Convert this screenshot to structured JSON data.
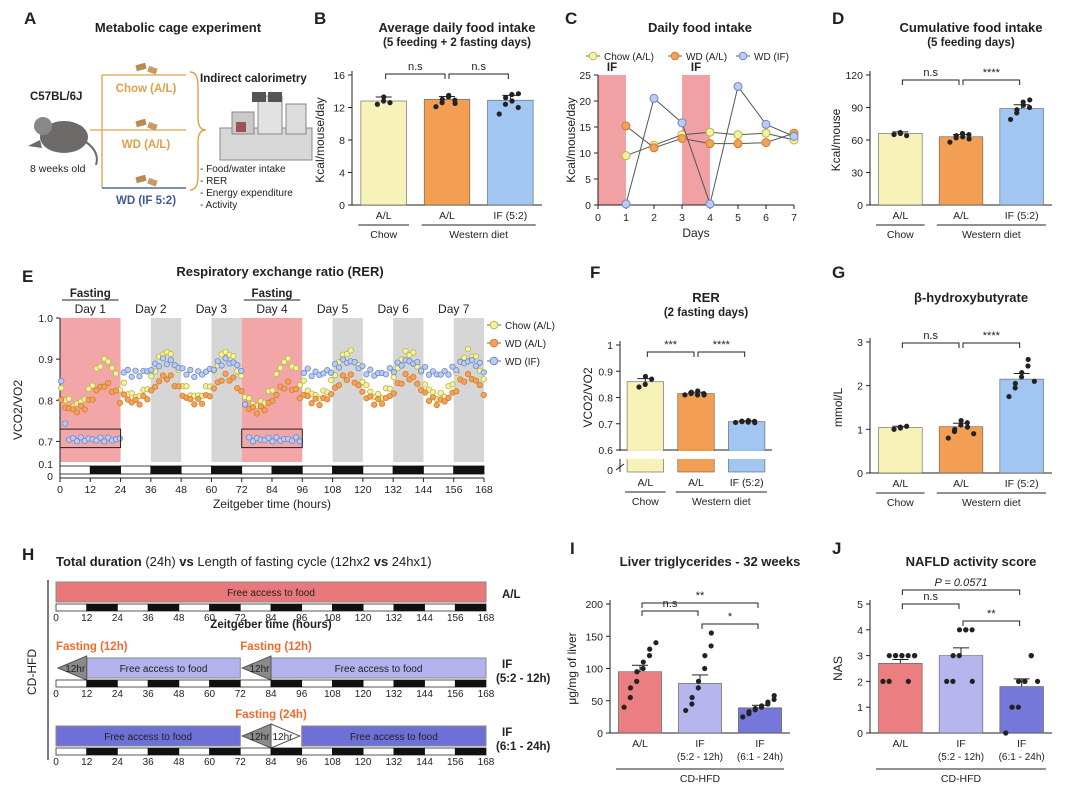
{
  "panels": {
    "A": {
      "letter": "A",
      "title": "Metabolic cage experiment",
      "strain": "C57BL/6J",
      "age": "8 weeks old",
      "groups": [
        "Chow (A/L)",
        "WD (A/L)",
        "WD (IF 5:2)"
      ],
      "group_colors": [
        "#e0a04a",
        "#e0a04a",
        "#3b5c9a"
      ],
      "cage_label": "Indirect calorimetry",
      "measures": [
        "- Food/water intake",
        "- RER",
        "- Energy expenditure",
        "- Activity"
      ]
    },
    "H": {
      "letter": "H",
      "title_parts": [
        "Total duration",
        " (24h) ",
        "vs",
        " Length of fasting cycle ",
        "(12hx2 ",
        "vs",
        " 24hx1)"
      ],
      "side_label": "CD-HFD",
      "axis_label": "Zeitgeber time (hours)",
      "ticks": [
        "0",
        "12",
        "24",
        "36",
        "48",
        "60",
        "72",
        "84",
        "96",
        "108",
        "120",
        "132",
        "144",
        "156",
        "168"
      ],
      "rows": [
        {
          "label": "A/L",
          "bar_text": "Free access to food",
          "color": "#e9787a"
        },
        {
          "label": "IF",
          "label2": "(5:2 - 12h)",
          "fast_label": "Fasting (12h)",
          "bar_text": "Free access to food",
          "wedge": "12hr",
          "color": "#b3b2ee"
        },
        {
          "label": "IF",
          "label2": "(6:1 - 24h)",
          "fast_label": "Fasting (24h)",
          "bar_text": "Free access to food",
          "wedge": "12hr",
          "color": "#6e70d8"
        }
      ],
      "fast_color": "#ef6a2f"
    }
  },
  "chart_data": [
    {
      "id": "B",
      "letter": "B",
      "type": "bar",
      "title": "Average daily food intake",
      "subtitle": "(5 feeding + 2 fasting days)",
      "ylabel": "Kcal/mouse/day",
      "ylim": [
        0,
        16
      ],
      "yticks": [
        0,
        4,
        8,
        12,
        16
      ],
      "categories": [
        "A/L",
        "A/L",
        "IF (5:2)"
      ],
      "group_labels": [
        {
          "text": "Chow",
          "from": 0,
          "to": 0
        },
        {
          "text": "Western diet",
          "from": 1,
          "to": 2
        }
      ],
      "values": [
        12.8,
        13.0,
        12.9
      ],
      "errors": [
        0.5,
        0.35,
        0.6
      ],
      "points": [
        [
          12.4,
          12.8,
          13.3,
          12.6
        ],
        [
          12.1,
          12.6,
          13.0,
          13.3,
          13.5,
          12.9,
          12.5
        ],
        [
          11.2,
          12.4,
          13.2,
          13.6,
          12.8,
          12.0,
          13.7
        ]
      ],
      "colors": [
        "#f7f2b4",
        "#f29a4a",
        "#9ec3f2"
      ],
      "significance": [
        {
          "a": 0,
          "b": 1,
          "label": "n.s"
        },
        {
          "a": 1,
          "b": 2,
          "label": "n.s"
        }
      ]
    },
    {
      "id": "C",
      "letter": "C",
      "type": "line",
      "title": "Daily food intake",
      "xlabel": "Days",
      "ylabel": "Kcal/mouse/day",
      "xlim": [
        0,
        7
      ],
      "ylim": [
        0,
        25
      ],
      "xticks": [
        0,
        1,
        2,
        3,
        4,
        5,
        6,
        7
      ],
      "yticks": [
        0,
        5,
        10,
        15,
        20,
        25
      ],
      "fasting_bands": [
        [
          0,
          1
        ],
        [
          3,
          4
        ]
      ],
      "band_label": "IF",
      "series": [
        {
          "name": "Chow (A/L)",
          "color": "#b8b83a",
          "fill": "#f6f1a8",
          "x": [
            1,
            2,
            3,
            4,
            5,
            6,
            7
          ],
          "y": [
            9.5,
            11.5,
            13.5,
            14.0,
            13.5,
            13.8,
            12.5
          ]
        },
        {
          "name": "WD (A/L)",
          "color": "#d57a2a",
          "fill": "#f1a35a",
          "x": [
            1,
            2,
            3,
            4,
            5,
            6,
            7
          ],
          "y": [
            15.2,
            11.0,
            12.8,
            11.8,
            11.8,
            12.0,
            13.8
          ]
        },
        {
          "name": "WD (IF)",
          "color": "#6f86c8",
          "fill": "#b9ccf2",
          "x": [
            1,
            2,
            3,
            4,
            5,
            6,
            7
          ],
          "y": [
            0.2,
            20.5,
            15.8,
            0.2,
            22.8,
            15.5,
            13.2
          ]
        }
      ]
    },
    {
      "id": "D",
      "letter": "D",
      "type": "bar",
      "title": "Cumulative food intake",
      "subtitle": "(5 feeding days)",
      "ylabel": "Kcal/mouse",
      "ylim": [
        0,
        120
      ],
      "yticks": [
        0,
        30,
        60,
        90,
        120
      ],
      "categories": [
        "A/L",
        "A/L",
        "IF (5:2)"
      ],
      "group_labels": [
        {
          "text": "Chow",
          "from": 0,
          "to": 0
        },
        {
          "text": "Western diet",
          "from": 1,
          "to": 2
        }
      ],
      "values": [
        66,
        63,
        89
      ],
      "errors": [
        1.5,
        2.0,
        3.5
      ],
      "points": [
        [
          65,
          67,
          66,
          64
        ],
        [
          58,
          62,
          64,
          66,
          63,
          65,
          61
        ],
        [
          79,
          85,
          88,
          95,
          92,
          90,
          97
        ]
      ],
      "colors": [
        "#f7f2b4",
        "#f29a4a",
        "#9ec3f2"
      ],
      "significance": [
        {
          "a": 0,
          "b": 1,
          "label": "n.s"
        },
        {
          "a": 1,
          "b": 2,
          "label": "****"
        }
      ]
    },
    {
      "id": "E",
      "letter": "E",
      "type": "scatter",
      "title": "Respiratory exchange ratio (RER)",
      "xlabel": "Zeitgeber time (hours)",
      "ylabel": "VCO2/VO2",
      "xlim": [
        0,
        168
      ],
      "ylim": [
        0.65,
        1.0
      ],
      "xticks": [
        0,
        12,
        24,
        36,
        48,
        60,
        72,
        84,
        96,
        108,
        120,
        132,
        144,
        156,
        168
      ],
      "yticks": [
        0.7,
        0.8,
        0.9,
        1.0
      ],
      "broken_axis_label": "0.1",
      "day_labels": [
        "Day 1",
        "Day 2",
        "Day 3",
        "Day 4",
        "Day 5",
        "Day 6",
        "Day 7"
      ],
      "fasting_label": "Fasting",
      "fasting_days": [
        0,
        3
      ],
      "series": [
        {
          "name": "Chow (A/L)",
          "color": "#b8b83a",
          "fill": "#f6f1a8",
          "dark_mean": 0.895,
          "light_mean": 0.8,
          "amp": 0.07
        },
        {
          "name": "WD (A/L)",
          "color": "#d57a2a",
          "fill": "#f1a35a",
          "dark_mean": 0.845,
          "light_mean": 0.79,
          "amp": 0.04
        },
        {
          "name": "WD (IF)",
          "color": "#6f86c8",
          "fill": "#b9ccf2",
          "dark_mean": 0.88,
          "light_mean": 0.87,
          "amp": 0.02,
          "fast_value": 0.705
        }
      ]
    },
    {
      "id": "F",
      "letter": "F",
      "type": "bar",
      "title": "RER",
      "subtitle": "(2 fasting days)",
      "ylabel": "VCO2/VO2",
      "ylim": [
        0.6,
        1.0
      ],
      "yticks": [
        0.6,
        0.7,
        0.8,
        0.9,
        1.0
      ],
      "broken_axis": true,
      "categories": [
        "A/L",
        "A/L",
        "IF (5:2)"
      ],
      "group_labels": [
        {
          "text": "Chow",
          "from": 0,
          "to": 0
        },
        {
          "text": "Western diet",
          "from": 1,
          "to": 2
        }
      ],
      "values": [
        0.86,
        0.815,
        0.708
      ],
      "errors": [
        0.012,
        0.005,
        0.003
      ],
      "points": [
        [
          0.84,
          0.85,
          0.88,
          0.87
        ],
        [
          0.81,
          0.815,
          0.82,
          0.81,
          0.825,
          0.815,
          0.81
        ],
        [
          0.705,
          0.71,
          0.708,
          0.706,
          0.712,
          0.709,
          0.704
        ]
      ],
      "colors": [
        "#f7f2b4",
        "#f29a4a",
        "#9ec3f2"
      ],
      "significance": [
        {
          "a": 0,
          "b": 1,
          "label": "***"
        },
        {
          "a": 1,
          "b": 2,
          "label": "****"
        }
      ]
    },
    {
      "id": "G",
      "letter": "G",
      "type": "bar",
      "title": "β-hydroxybutyrate",
      "ylabel": "mmol/L",
      "ylim": [
        0,
        3
      ],
      "yticks": [
        0,
        1,
        2,
        3
      ],
      "categories": [
        "A/L",
        "A/L",
        "IF (5:2)"
      ],
      "group_labels": [
        {
          "text": "Chow",
          "from": 0,
          "to": 0
        },
        {
          "text": "Western diet",
          "from": 1,
          "to": 2
        }
      ],
      "values": [
        1.04,
        1.06,
        2.15
      ],
      "errors": [
        0.03,
        0.08,
        0.13
      ],
      "points": [
        [
          1.0,
          1.05,
          1.03,
          1.07
        ],
        [
          0.8,
          0.95,
          1.0,
          1.1,
          1.2,
          1.15,
          1.05,
          0.9
        ],
        [
          1.75,
          1.95,
          2.05,
          2.2,
          2.3,
          2.45,
          2.6,
          2.1
        ]
      ],
      "colors": [
        "#f7f2b4",
        "#f29a4a",
        "#9ec3f2"
      ],
      "significance": [
        {
          "a": 0,
          "b": 1,
          "label": "n.s"
        },
        {
          "a": 1,
          "b": 2,
          "label": "****"
        }
      ]
    },
    {
      "id": "I",
      "letter": "I",
      "type": "bar",
      "title": "Liver triglycerides - 32 weeks",
      "ylabel": "μg/mg of liver",
      "ylim": [
        0,
        200
      ],
      "yticks": [
        0,
        50,
        100,
        150,
        200
      ],
      "categories": [
        "A/L",
        "IF",
        "IF"
      ],
      "categories2": [
        "",
        "(5:2 - 12h)",
        "(6:1 - 24h)"
      ],
      "group_labels": [
        {
          "text": "CD-HFD",
          "from": 0,
          "to": 2
        }
      ],
      "values": [
        95,
        77,
        39
      ],
      "errors": [
        10,
        13,
        4
      ],
      "points": [
        [
          40,
          55,
          70,
          80,
          95,
          100,
          110,
          120,
          130,
          140
        ],
        [
          35,
          45,
          55,
          70,
          80,
          100,
          120,
          135,
          155
        ],
        [
          25,
          30,
          33,
          36,
          38,
          40,
          42,
          45,
          48,
          52,
          58
        ]
      ],
      "colors": [
        "#e9787a",
        "#b3b2ee",
        "#6e70d8"
      ],
      "significance": [
        {
          "a": 0,
          "b": 1,
          "label": "n.s"
        },
        {
          "a": 1,
          "b": 2,
          "label": "*"
        },
        {
          "a": 0,
          "b": 2,
          "label": "**"
        }
      ]
    },
    {
      "id": "J",
      "letter": "J",
      "type": "bar",
      "title": "NAFLD activity score",
      "ylabel": "NAS",
      "ylim": [
        0,
        5
      ],
      "yticks": [
        0,
        1,
        2,
        3,
        4,
        5
      ],
      "categories": [
        "A/L",
        "IF",
        "IF"
      ],
      "categories2": [
        "",
        "(5:2 - 12h)",
        "(6:1 - 24h)"
      ],
      "group_labels": [
        {
          "text": "CD-HFD",
          "from": 0,
          "to": 2
        }
      ],
      "values": [
        2.7,
        3.0,
        1.8
      ],
      "errors": [
        0.15,
        0.3,
        0.3
      ],
      "points": [
        [
          2,
          2,
          3,
          3,
          3,
          3,
          3,
          3,
          2,
          3,
          3
        ],
        [
          2,
          2,
          3,
          3,
          4,
          4,
          4,
          4,
          2
        ],
        [
          0,
          1,
          1,
          1,
          2,
          2,
          2,
          3,
          3,
          2
        ]
      ],
      "colors": [
        "#e9787a",
        "#b3b2ee",
        "#6e70d8"
      ],
      "significance": [
        {
          "a": 0,
          "b": 1,
          "label": "n.s"
        },
        {
          "a": 1,
          "b": 2,
          "label": "**"
        },
        {
          "a": 0,
          "b": 2,
          "label": "P = 0.0571",
          "italic": true
        }
      ]
    }
  ]
}
